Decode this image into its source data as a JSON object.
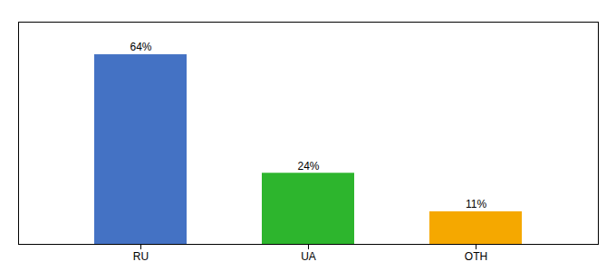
{
  "chart_data": {
    "type": "bar",
    "categories": [
      "RU",
      "UA",
      "OTH"
    ],
    "values": [
      64,
      24,
      11
    ],
    "value_labels": [
      "64%",
      "24%",
      "11%"
    ],
    "colors": [
      "#4472c4",
      "#2db52d",
      "#f5a800"
    ],
    "ylim": [
      0,
      75
    ],
    "data_labels": true,
    "tick_labels": "x"
  }
}
